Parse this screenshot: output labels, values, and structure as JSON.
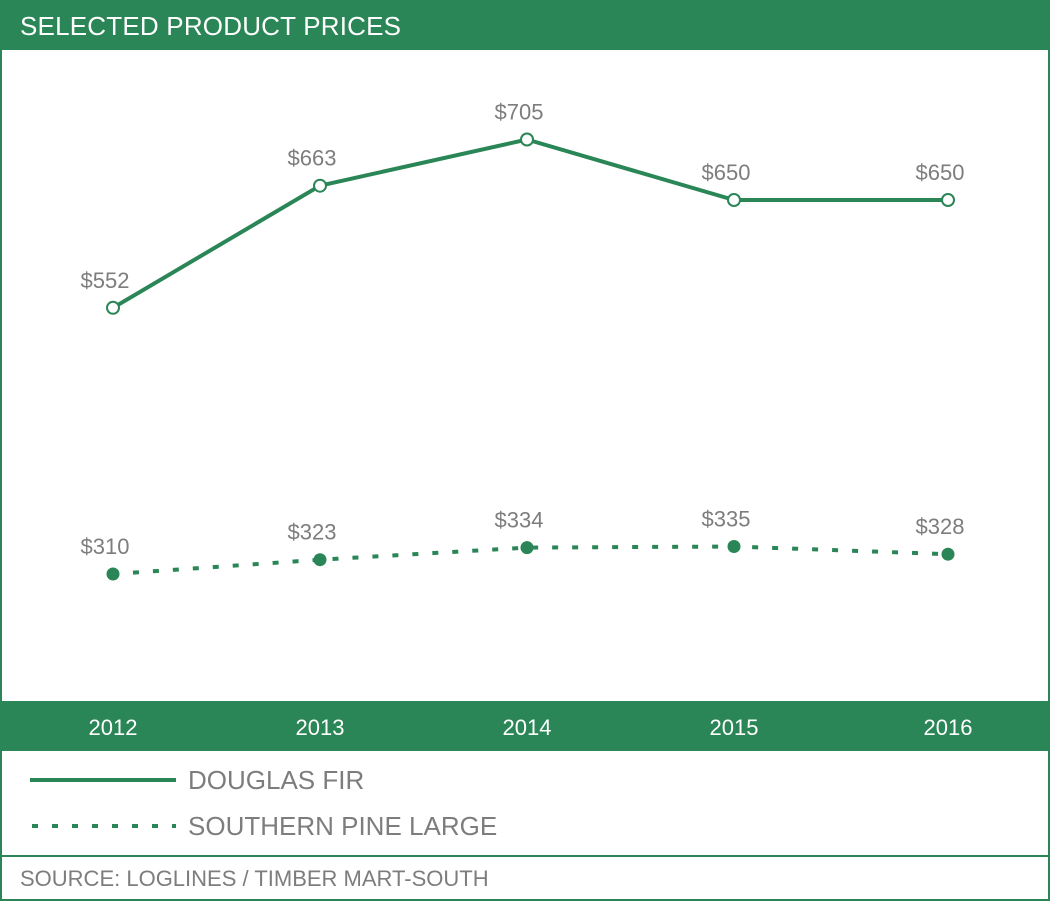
{
  "chart_data": {
    "type": "line",
    "title": "SELECTED PRODUCT PRICES",
    "categories": [
      "2012",
      "2013",
      "2014",
      "2015",
      "2016"
    ],
    "series": [
      {
        "name": "DOUGLAS FIR",
        "values": [
          552,
          663,
          705,
          650,
          650
        ],
        "labels": [
          "$552",
          "$663",
          "$705",
          "$650",
          "$650"
        ],
        "style": "solid",
        "marker": "hollow-circle"
      },
      {
        "name": "SOUTHERN PINE LARGE",
        "values": [
          310,
          323,
          334,
          335,
          328
        ],
        "labels": [
          "$310",
          "$323",
          "$334",
          "$335",
          "$328"
        ],
        "style": "dotted",
        "marker": "filled-circle"
      }
    ],
    "ylim": [
      250,
      750
    ],
    "xlabel": "",
    "ylabel": "",
    "grid": false,
    "legend_position": "bottom-left",
    "source": "SOURCE: LOGLINES / TIMBER MART-SOUTH"
  },
  "colors": {
    "accent": "#2a8656",
    "text": "#7d7d7d",
    "background": "#ffffff"
  }
}
